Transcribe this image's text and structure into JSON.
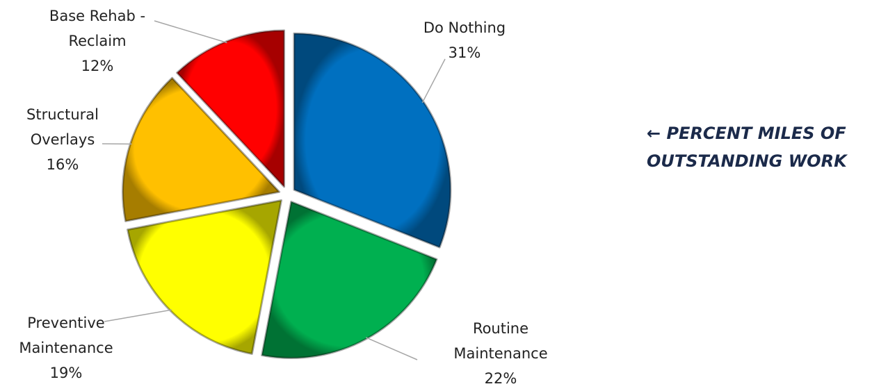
{
  "chart_data": {
    "type": "pie",
    "categories": [
      "Do Nothing",
      "Routine Maintenance",
      "Preventive Maintenance",
      "Structural Overlays",
      "Base Rehab - Reclaim"
    ],
    "values": [
      31,
      22,
      19,
      16,
      12
    ],
    "value_labels": [
      "31%",
      "22%",
      "19%",
      "16%",
      "12%"
    ],
    "colors": [
      "#0070c0",
      "#00b050",
      "#ffff00",
      "#ffc000",
      "#ff0000"
    ],
    "annotation": "← PERCENT MILES OF OUTSTANDING WORK"
  }
}
